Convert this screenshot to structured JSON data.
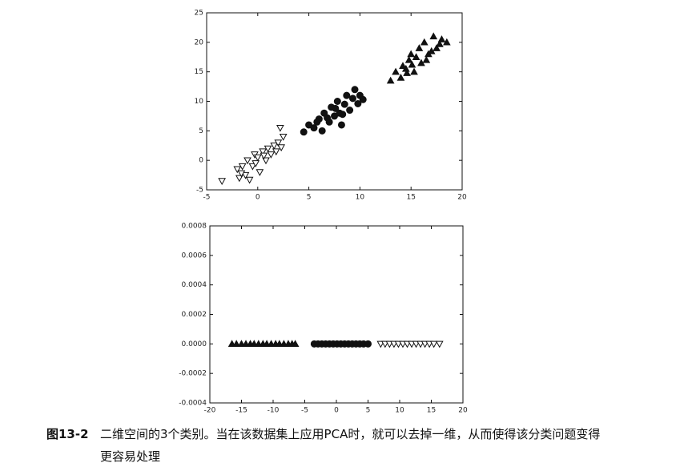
{
  "chart_data": [
    {
      "type": "scatter",
      "xlim": [
        -5,
        20
      ],
      "ylim": [
        -5,
        25
      ],
      "xticks": [
        -5,
        0,
        5,
        10,
        15,
        20
      ],
      "yticks": [
        -5,
        0,
        5,
        10,
        15,
        20,
        25
      ],
      "series": [
        {
          "marker": "v",
          "filled": false,
          "color": "#111111",
          "x": [
            -3.5,
            -2,
            -1.8,
            -1.5,
            -1.2,
            -1,
            -0.8,
            -0.5,
            -0.3,
            0,
            0.2,
            0.5,
            0.8,
            1,
            1.3,
            1.6,
            2,
            2.2,
            2.5,
            2.3,
            -1.6,
            -0.2,
            0.6,
            1.8
          ],
          "values": [
            -3.5,
            -1.5,
            -3,
            -1,
            -2.5,
            0,
            -3.3,
            -1,
            1,
            0.5,
            -2,
            1.5,
            0,
            2,
            1,
            2.5,
            3,
            5.5,
            4,
            2.2,
            -2.2,
            -0.5,
            0.8,
            1.5
          ]
        },
        {
          "marker": "o",
          "filled": true,
          "color": "#111111",
          "x": [
            4.5,
            5,
            5.5,
            6,
            6.3,
            6.5,
            7,
            7.2,
            7.5,
            7.8,
            8,
            8.2,
            8.5,
            8.7,
            9,
            9.3,
            9.5,
            10,
            10.3,
            6.8,
            7.6,
            8.3,
            9.8,
            5.8
          ],
          "values": [
            4.8,
            6,
            5.5,
            7,
            5,
            8,
            6.5,
            9,
            7.5,
            10,
            8,
            6,
            9.5,
            11,
            8.5,
            10.5,
            12,
            11,
            10.3,
            7.2,
            8.8,
            7.8,
            9.6,
            6.5
          ]
        },
        {
          "marker": "^",
          "filled": true,
          "color": "#111111",
          "x": [
            13,
            13.5,
            14,
            14.2,
            14.5,
            14.8,
            15,
            15.3,
            15.5,
            15.8,
            16,
            16.3,
            16.5,
            17,
            17.2,
            17.5,
            18,
            18.5,
            15.1,
            16.7,
            14.6,
            17.8
          ],
          "values": [
            13.5,
            15,
            14,
            16,
            15.5,
            17,
            18,
            15,
            17.5,
            19,
            16.5,
            20,
            17,
            18.5,
            21,
            19,
            20.5,
            20,
            16.2,
            18,
            14.8,
            19.7
          ]
        }
      ]
    },
    {
      "type": "scatter",
      "xlim": [
        -20,
        20
      ],
      "ylim": [
        -0.0004,
        0.0008
      ],
      "xticks": [
        -20,
        -15,
        -10,
        -5,
        0,
        5,
        10,
        15,
        20
      ],
      "yticks": [
        0.0008,
        0.0006,
        0.0004,
        0.0002,
        {
          "value": 0,
          "label": "0.0000"
        },
        -0.0002,
        -0.0004
      ],
      "series": [
        {
          "marker": "^",
          "filled": true,
          "color": "#111111",
          "x": [
            -16.5,
            -15.8,
            -15,
            -14.3,
            -13.6,
            -13,
            -12.3,
            -11.6,
            -11,
            -10.3,
            -9.6,
            -9,
            -8.3,
            -7.6,
            -7,
            -6.5
          ],
          "values": [
            0,
            0,
            0,
            0,
            0,
            0,
            0,
            0,
            0,
            0,
            0,
            0,
            0,
            0,
            0,
            0
          ]
        },
        {
          "marker": "o",
          "filled": true,
          "color": "#111111",
          "x": [
            -3.5,
            -2.9,
            -2.3,
            -1.7,
            -1.1,
            -0.5,
            0.1,
            0.7,
            1.3,
            1.9,
            2.5,
            3.1,
            3.7,
            4.3,
            5
          ],
          "values": [
            0,
            0,
            0,
            0,
            0,
            0,
            0,
            0,
            0,
            0,
            0,
            0,
            0,
            0,
            0
          ]
        },
        {
          "marker": "v",
          "filled": false,
          "color": "#111111",
          "x": [
            7,
            7.7,
            8.4,
            9.1,
            9.8,
            10.5,
            11.2,
            11.9,
            12.6,
            13.3,
            14,
            14.7,
            15.4,
            16.3
          ],
          "values": [
            0,
            0,
            0,
            0,
            0,
            0,
            0,
            0,
            0,
            0,
            0,
            0,
            0,
            0
          ]
        }
      ]
    }
  ],
  "caption": {
    "label": "图13-2",
    "text": "二维空间的3个类别。当在该数据集上应用PCA时，就可以去掉一维，从而使得该分类问题变得更容易处理"
  }
}
